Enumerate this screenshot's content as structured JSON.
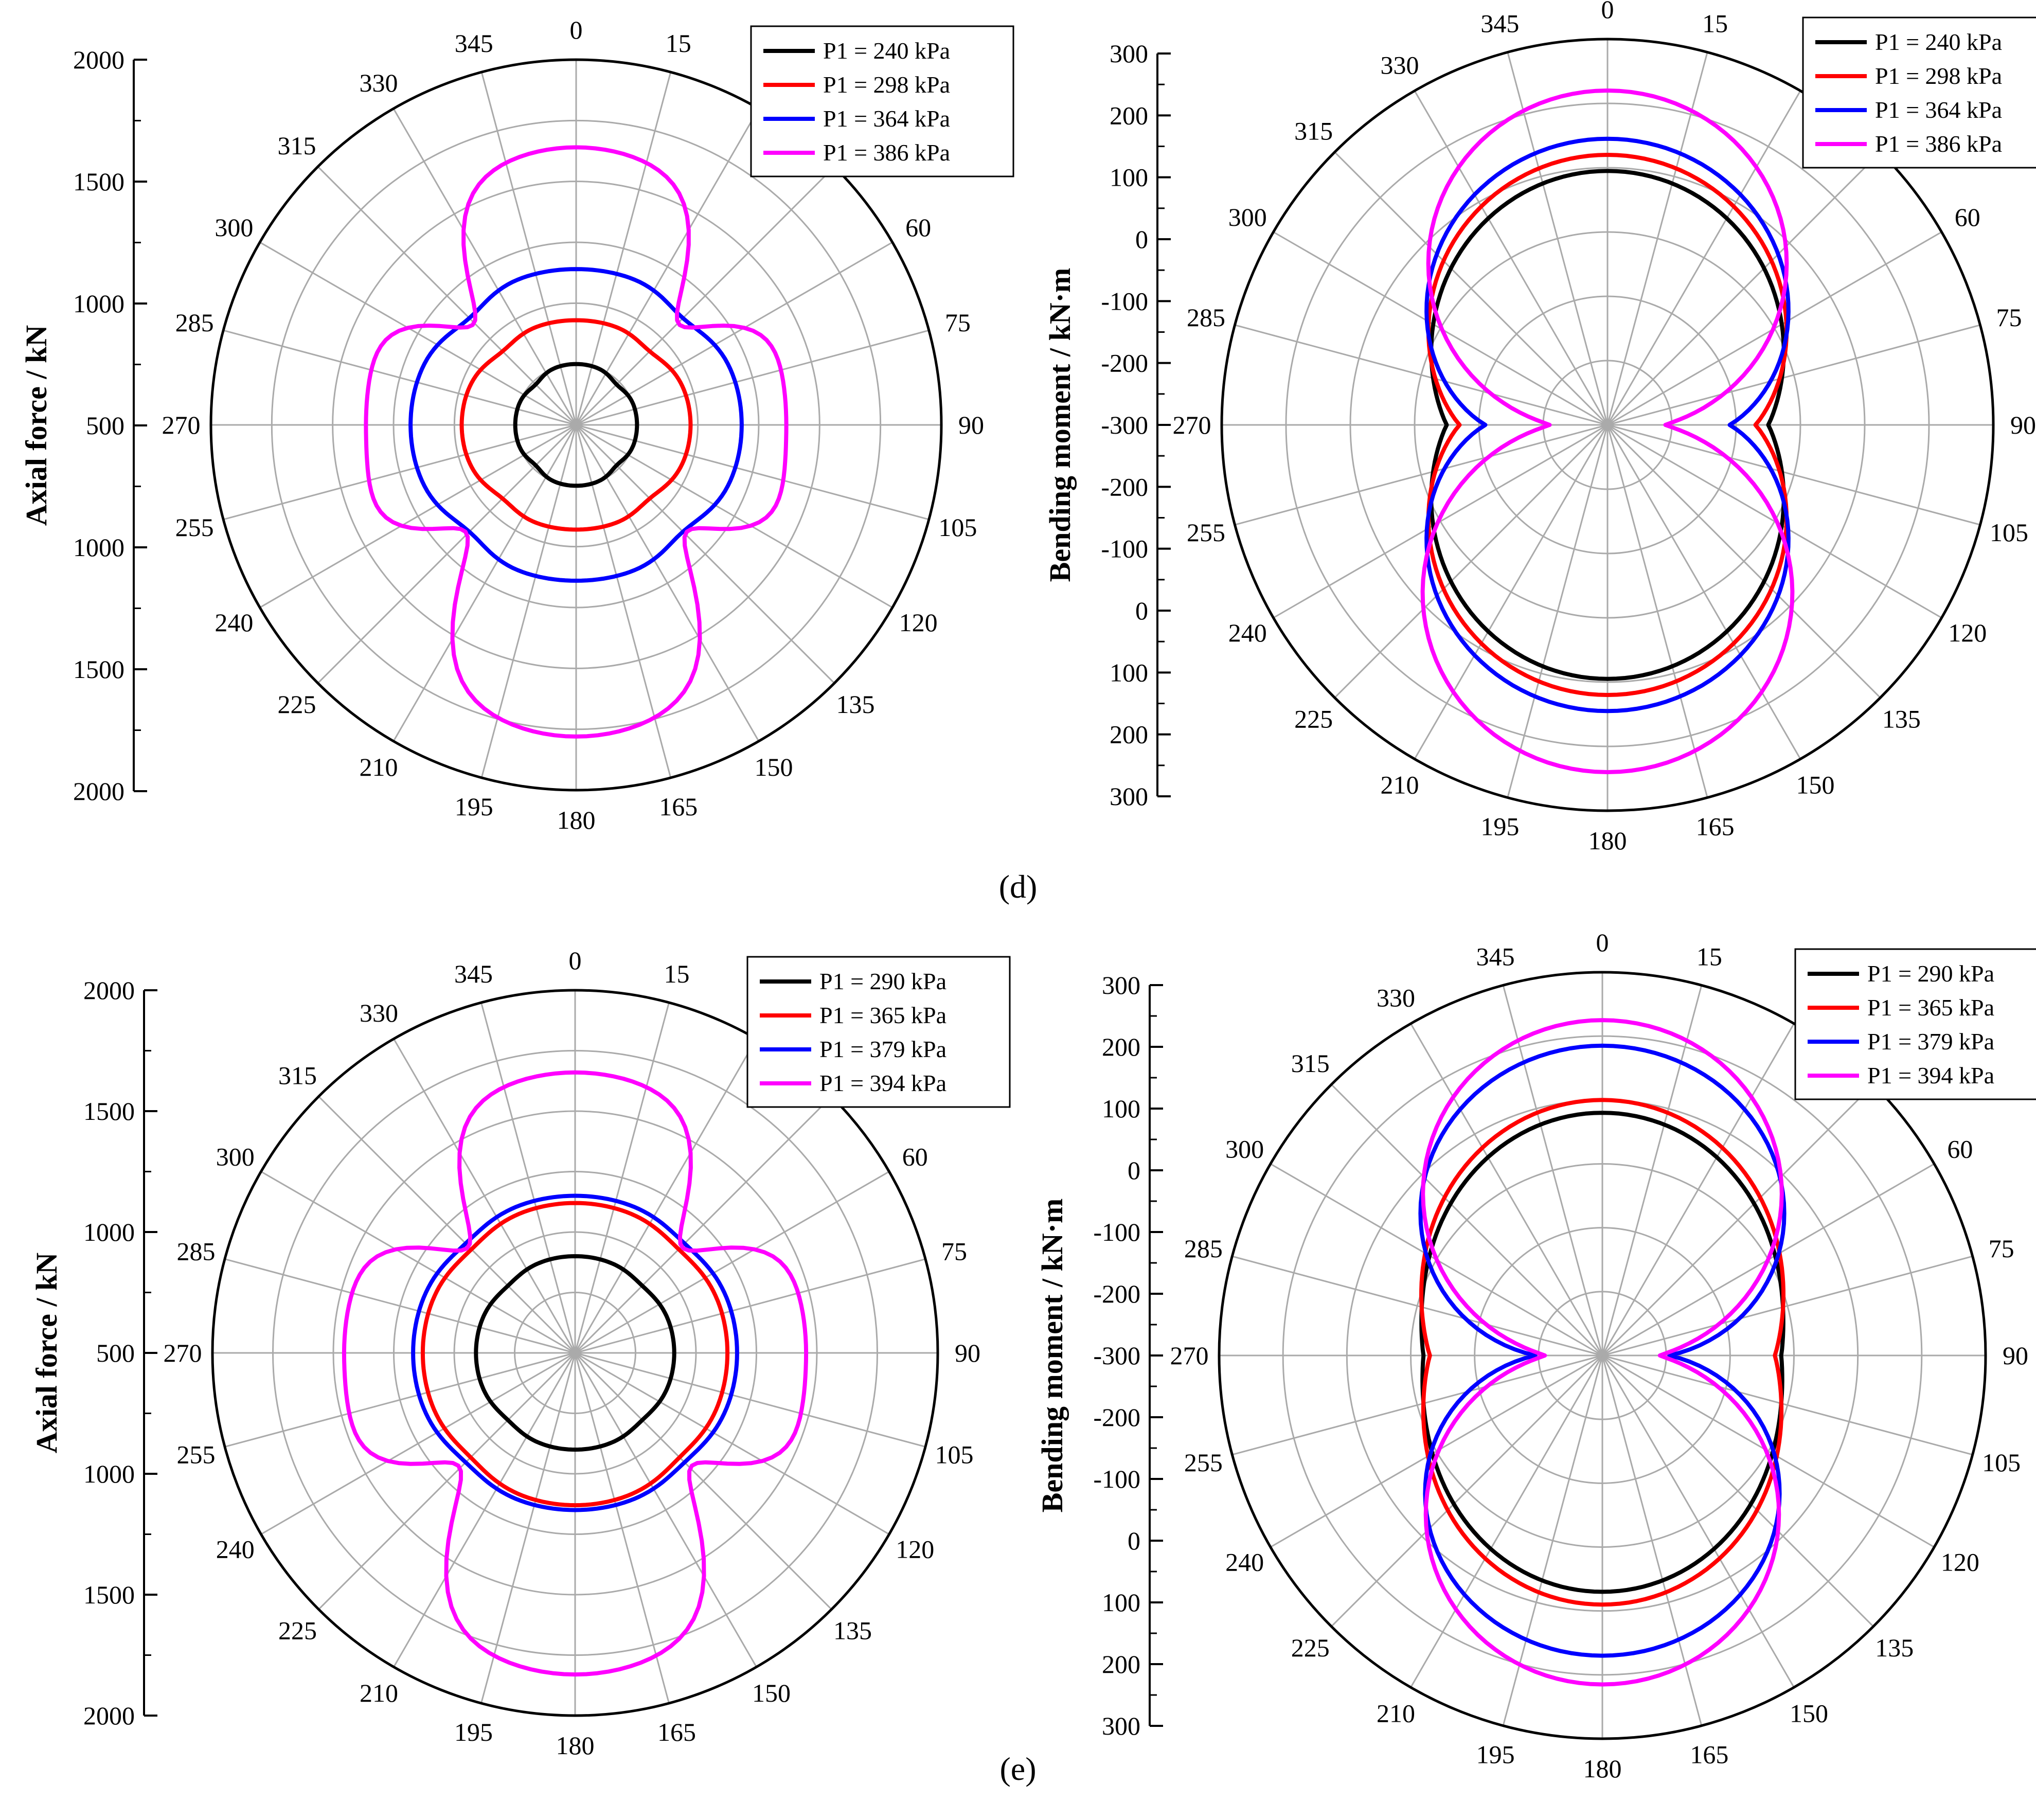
{
  "panel_labels": [
    "(d)",
    "(e)"
  ],
  "colors": {
    "series": [
      "#000000",
      "#ff0000",
      "#0000ff",
      "#ff00ff"
    ],
    "grid": "#aaaaaa",
    "axis": "#000000"
  },
  "chart_data": [
    {
      "type": "polar-line",
      "panel": "d",
      "ylabel": "Axial force / kN",
      "axis_ticks": [
        "2000",
        "1500",
        "1000",
        "500",
        "1000",
        "1500",
        "2000"
      ],
      "angle_ticks": [
        "0",
        "15",
        "30",
        "45",
        "60",
        "75",
        "90",
        "105",
        "120",
        "135",
        "150",
        "165",
        "180",
        "195",
        "210",
        "225",
        "240",
        "255",
        "270",
        "285",
        "300",
        "315",
        "330",
        "345"
      ],
      "r_domain": [
        0,
        1500
      ],
      "legend_position": "top-right",
      "grid": true,
      "series": [
        {
          "name": "P1 = 240 kPa",
          "shape": "axial",
          "r0": 250,
          "r90": 250,
          "r180": 250,
          "bulge": 0,
          "pinch": 0.06
        },
        {
          "name": "P1 = 298 kPa",
          "shape": "axial",
          "r0": 430,
          "r90": 470,
          "r180": 430,
          "bulge": 0,
          "pinch": 0.05
        },
        {
          "name": "P1 = 364 kPa",
          "shape": "axial",
          "r0": 640,
          "r90": 680,
          "r180": 640,
          "bulge": 0,
          "pinch": 0.06
        },
        {
          "name": "P1 = 386 kPa",
          "shape": "axial",
          "r0": 1140,
          "r90": 830,
          "r180": 1280,
          "bulge": 0.04,
          "pinch": 0.4
        }
      ]
    },
    {
      "type": "polar-line",
      "panel": "d",
      "ylabel": "Bending moment / kN·m",
      "axis_ticks": [
        "300",
        "200",
        "100",
        "0",
        "-100",
        "-200",
        "-300",
        "-200",
        "-100",
        "0",
        "100",
        "200",
        "300"
      ],
      "angle_ticks": [
        "0",
        "15",
        "30",
        "45",
        "60",
        "75",
        "90",
        "105",
        "120",
        "135",
        "150",
        "165",
        "180",
        "195",
        "210",
        "225",
        "240",
        "255",
        "270",
        "285",
        "300",
        "315",
        "330",
        "345"
      ],
      "r_domain": [
        -300,
        300
      ],
      "legend_position": "top-right",
      "grid": true,
      "series": [
        {
          "name": "P1 = 240 kPa",
          "shape": "moment",
          "r0": 95,
          "r90": -50,
          "r180": 95,
          "t": 0.95
        },
        {
          "name": "P1 = 298 kPa",
          "shape": "moment",
          "r0": 120,
          "r90": -70,
          "r180": 120,
          "t": 0.95
        },
        {
          "name": "P1 = 364 kPa",
          "shape": "moment",
          "r0": 145,
          "r90": -110,
          "r180": 145,
          "t": 0.95
        },
        {
          "name": "P1 = 386 kPa",
          "shape": "moment",
          "r0": 220,
          "r90": -210,
          "r180": 240,
          "t": 1.3
        }
      ]
    },
    {
      "type": "polar-line",
      "panel": "e",
      "ylabel": "Axial force / kN",
      "axis_ticks": [
        "2000",
        "1500",
        "1000",
        "500",
        "1000",
        "1500",
        "2000"
      ],
      "angle_ticks": [
        "0",
        "15",
        "30",
        "45",
        "60",
        "75",
        "90",
        "105",
        "120",
        "135",
        "150",
        "165",
        "180",
        "195",
        "210",
        "225",
        "240",
        "255",
        "270",
        "285",
        "300",
        "315",
        "330",
        "345"
      ],
      "r_domain": [
        0,
        1500
      ],
      "legend_position": "top-right",
      "grid": true,
      "series": [
        {
          "name": "P1 = 290 kPa",
          "shape": "axial",
          "r0": 400,
          "r90": 410,
          "r180": 400,
          "bulge": 0,
          "pinch": 0.03
        },
        {
          "name": "P1 = 365 kPa",
          "shape": "axial",
          "r0": 620,
          "r90": 630,
          "r180": 630,
          "bulge": 0,
          "pinch": 0.03
        },
        {
          "name": "P1 = 379 kPa",
          "shape": "axial",
          "r0": 650,
          "r90": 670,
          "r180": 650,
          "bulge": 0,
          "pinch": 0.03
        },
        {
          "name": "P1 = 394 kPa",
          "shape": "axial",
          "r0": 1160,
          "r90": 910,
          "r180": 1330,
          "bulge": 0.05,
          "pinch": 0.4
        }
      ]
    },
    {
      "type": "polar-line",
      "panel": "e",
      "ylabel": "Bending moment / kN·m",
      "axis_ticks": [
        "300",
        "200",
        "100",
        "0",
        "-100",
        "-200",
        "-300",
        "-200",
        "-100",
        "0",
        "100",
        "200",
        "300"
      ],
      "angle_ticks": [
        "0",
        "15",
        "30",
        "45",
        "60",
        "75",
        "90",
        "105",
        "120",
        "135",
        "150",
        "165",
        "180",
        "195",
        "210",
        "225",
        "240",
        "255",
        "270",
        "285",
        "300",
        "315",
        "330",
        "345"
      ],
      "r_domain": [
        -300,
        300
      ],
      "legend_position": "top-right",
      "grid": true,
      "series": [
        {
          "name": "P1 = 290 kPa",
          "shape": "moment",
          "r0": 80,
          "r90": -20,
          "r180": 70,
          "t": 0.95
        },
        {
          "name": "P1 = 365 kPa",
          "shape": "moment",
          "r0": 100,
          "r90": -30,
          "r180": 90,
          "t": 0.95
        },
        {
          "name": "P1 = 379 kPa",
          "shape": "moment",
          "r0": 185,
          "r90": -195,
          "r180": 170,
          "t": 1.0
        },
        {
          "name": "P1 = 394 kPa",
          "shape": "moment",
          "r0": 225,
          "r90": -210,
          "r180": 215,
          "t": 1.3
        }
      ]
    }
  ]
}
